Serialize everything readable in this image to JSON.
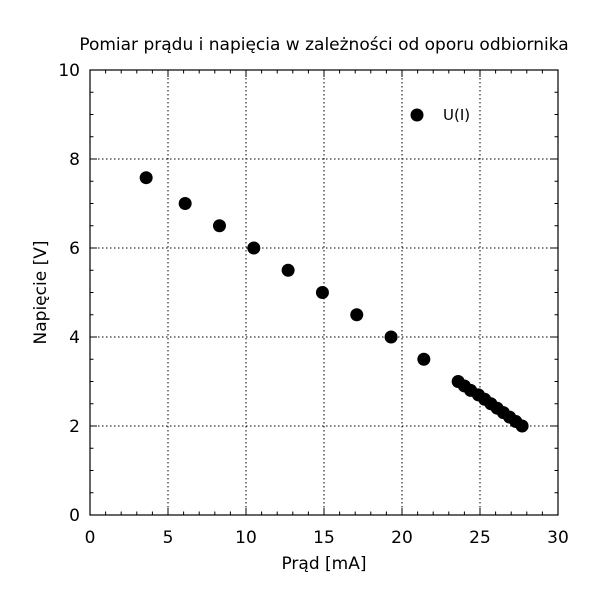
{
  "chart_data": {
    "type": "scatter",
    "title": "Pomiar prądu i napięcia w zależności od oporu odbiornika",
    "xlabel": "Prąd [mA]",
    "ylabel": "Napięcie [V]",
    "xlim": [
      0,
      30
    ],
    "ylim": [
      0,
      10
    ],
    "xticks": [
      0,
      5,
      10,
      15,
      20,
      25,
      30
    ],
    "yticks": [
      0,
      2,
      4,
      6,
      8,
      10
    ],
    "grid": true,
    "legend_position": "top-right",
    "marker_color": "#000000",
    "series": [
      {
        "name": "U(I)",
        "points": [
          {
            "x": 3.6,
            "y": 7.58
          },
          {
            "x": 6.1,
            "y": 7.0
          },
          {
            "x": 8.3,
            "y": 6.5
          },
          {
            "x": 10.5,
            "y": 6.0
          },
          {
            "x": 12.7,
            "y": 5.5
          },
          {
            "x": 14.9,
            "y": 5.0
          },
          {
            "x": 17.1,
            "y": 4.5
          },
          {
            "x": 19.3,
            "y": 4.0
          },
          {
            "x": 21.4,
            "y": 3.5
          },
          {
            "x": 23.6,
            "y": 3.0
          },
          {
            "x": 24.0,
            "y": 2.9
          },
          {
            "x": 24.4,
            "y": 2.8
          },
          {
            "x": 24.9,
            "y": 2.7
          },
          {
            "x": 25.3,
            "y": 2.6
          },
          {
            "x": 25.7,
            "y": 2.5
          },
          {
            "x": 26.1,
            "y": 2.4
          },
          {
            "x": 26.5,
            "y": 2.3
          },
          {
            "x": 26.9,
            "y": 2.2
          },
          {
            "x": 27.3,
            "y": 2.1
          },
          {
            "x": 27.7,
            "y": 2.0
          }
        ]
      }
    ]
  }
}
